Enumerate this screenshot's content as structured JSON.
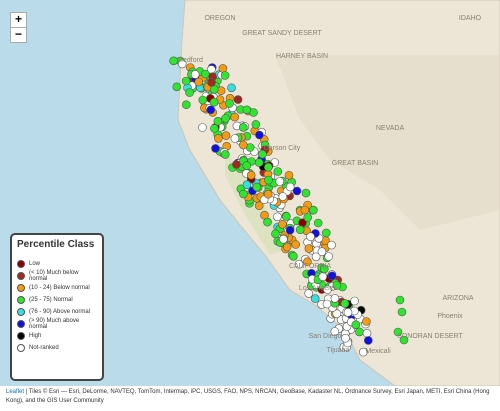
{
  "zoom": {
    "in": "+",
    "out": "−"
  },
  "map_labels": [
    "GREAT SANDY DESERT",
    "HARNEY BASIN",
    "Medford",
    "Carson City",
    "GREAT BASIN",
    "CALIFORNIA",
    "Los Angeles",
    "San Diego",
    "Tijuana",
    "Mexicali",
    "Phoenix",
    "ARIZONA",
    "SONORAN DESERT",
    "NEVADA",
    "IDAHO",
    "OREGON"
  ],
  "legend": {
    "title": "Percentile Class",
    "items": [
      {
        "label": "Low",
        "color": "#8b0000"
      },
      {
        "label": "(< 10) Much below normal",
        "color": "#a0291f"
      },
      {
        "label": "(10 - 24) Below normal",
        "color": "#f39c12"
      },
      {
        "label": "(25 - 75) Normal",
        "color": "#2ee62e"
      },
      {
        "label": "(76 - 90) Above normal",
        "color": "#35e0e0"
      },
      {
        "label": "(> 90) Much above normal",
        "color": "#1010e0"
      },
      {
        "label": "High",
        "color": "#000000"
      },
      {
        "label": "Not-ranked",
        "color": "#ffffff"
      }
    ]
  },
  "attribution": {
    "link": "Leaflet",
    "text": " | Tiles © Esri — Esri, DeLorme, NAVTEQ, TomTom, Intermap, iPC, USGS, FAO, NPS, NRCAN, GeoBase, Kadaster NL, Ordnance Survey, Esri Japan, METI, Esri China (Hong Kong), and the GIS User Community"
  }
}
